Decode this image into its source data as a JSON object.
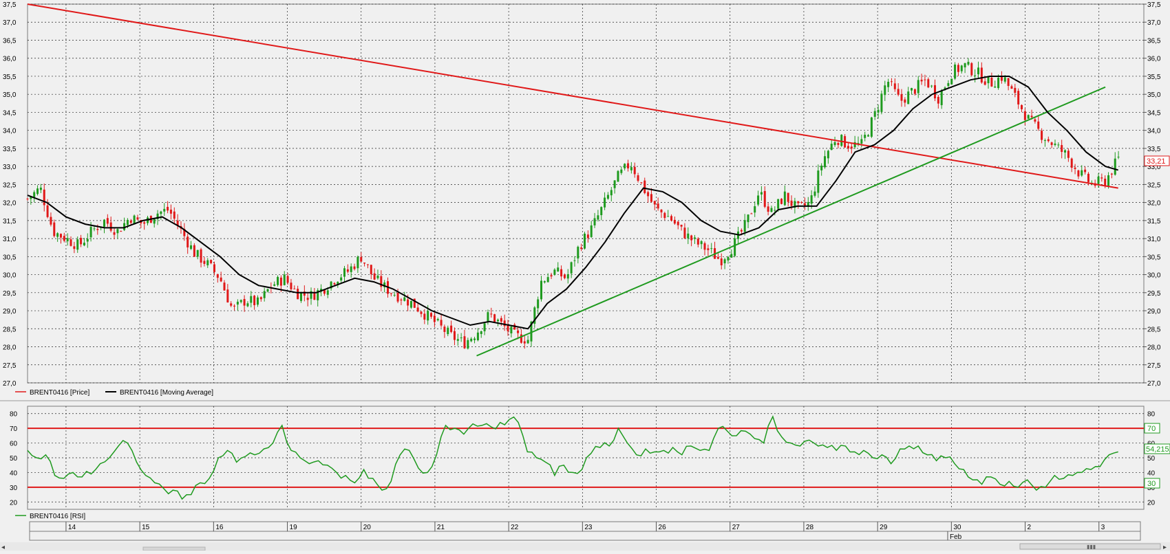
{
  "theme": {
    "background": "#f0f0f0",
    "plot_background": "#f0f0f0",
    "grid_color": "#222222",
    "price_up": "#1e9a1e",
    "price_down": "#e01818",
    "moving_average": "#000000",
    "resistance_line": "#e01818",
    "support_line": "#1f9a1f",
    "rsi_line": "#1f9a1f",
    "rsi_level_line": "#e01818",
    "last_price_tag": "#e01818",
    "rsi_tag": "#1f9a1f"
  },
  "legend": {
    "price_label": "BRENT0416 [Price]",
    "ma_label": "BRENT0416 [Moving Average]",
    "rsi_label": "BRENT0416 [RSI]"
  },
  "tags": {
    "last_price": "33,21",
    "rsi_value": "54,2152",
    "rsi_upper": "70",
    "rsi_lower": "30"
  },
  "x_axis": {
    "days": [
      "14",
      "15",
      "16",
      "19",
      "20",
      "21",
      "22",
      "23",
      "26",
      "27",
      "28",
      "29",
      "30",
      "2",
      "3"
    ],
    "month_label": "Feb"
  },
  "chart_data": [
    {
      "type": "candlestick",
      "series_name": "BRENT0416 [Price]",
      "ylim": [
        27.0,
        37.5
      ],
      "yticks": [
        "27,0",
        "27,5",
        "28,0",
        "28,5",
        "29,0",
        "29,5",
        "30,0",
        "30,5",
        "31,0",
        "31,5",
        "32,0",
        "32,5",
        "33,0",
        "33,5",
        "34,0",
        "34,5",
        "35,0",
        "35,5",
        "36,0",
        "36,5",
        "37,0",
        "37,5"
      ],
      "grid": true,
      "close_path": [
        [
          14.0,
          32.1
        ],
        [
          14.2,
          32.4
        ],
        [
          14.4,
          31.2
        ],
        [
          14.6,
          31.0
        ],
        [
          14.8,
          30.8
        ],
        [
          15.0,
          31.2
        ],
        [
          15.2,
          31.5
        ],
        [
          15.4,
          31.2
        ],
        [
          15.6,
          31.6
        ],
        [
          15.8,
          31.4
        ],
        [
          16.0,
          31.7
        ],
        [
          16.2,
          31.8
        ],
        [
          16.4,
          31.2
        ],
        [
          16.6,
          30.6
        ],
        [
          16.8,
          30.3
        ],
        [
          17.0,
          29.9
        ],
        [
          17.2,
          29.0
        ],
        [
          17.4,
          29.3
        ],
        [
          17.6,
          29.2
        ],
        [
          17.8,
          29.7
        ],
        [
          18.0,
          29.9
        ],
        [
          18.2,
          29.5
        ],
        [
          18.4,
          29.4
        ],
        [
          18.6,
          29.6
        ],
        [
          18.8,
          29.9
        ],
        [
          19.0,
          30.1
        ],
        [
          19.2,
          30.5
        ],
        [
          19.4,
          29.9
        ],
        [
          19.6,
          29.6
        ],
        [
          19.8,
          29.4
        ],
        [
          20.0,
          29.2
        ],
        [
          20.2,
          28.9
        ],
        [
          20.4,
          28.6
        ],
        [
          20.6,
          28.3
        ],
        [
          20.8,
          28.1
        ],
        [
          21.0,
          28.4
        ],
        [
          21.2,
          28.9
        ],
        [
          21.4,
          28.6
        ],
        [
          21.6,
          28.3
        ],
        [
          21.8,
          28.2
        ],
        [
          22.0,
          29.8
        ],
        [
          22.2,
          30.1
        ],
        [
          22.4,
          29.9
        ],
        [
          22.6,
          30.8
        ],
        [
          22.8,
          31.3
        ],
        [
          23.0,
          32.0
        ],
        [
          23.2,
          32.7
        ],
        [
          23.4,
          33.1
        ],
        [
          23.6,
          32.4
        ],
        [
          23.8,
          31.8
        ],
        [
          24.0,
          31.6
        ],
        [
          24.2,
          31.2
        ],
        [
          24.4,
          30.9
        ],
        [
          24.6,
          30.7
        ],
        [
          24.8,
          30.4
        ],
        [
          25.0,
          30.8
        ],
        [
          25.2,
          31.4
        ],
        [
          25.4,
          32.3
        ],
        [
          25.6,
          31.7
        ],
        [
          25.8,
          32.2
        ],
        [
          26.0,
          31.8
        ],
        [
          26.2,
          32.0
        ],
        [
          26.4,
          33.2
        ],
        [
          26.6,
          33.8
        ],
        [
          26.8,
          33.6
        ],
        [
          27.0,
          33.6
        ],
        [
          27.2,
          34.4
        ],
        [
          27.4,
          35.4
        ],
        [
          27.6,
          34.8
        ],
        [
          27.8,
          35.1
        ],
        [
          28.0,
          35.4
        ],
        [
          28.2,
          34.9
        ],
        [
          28.4,
          35.6
        ],
        [
          28.6,
          35.8
        ],
        [
          28.8,
          35.6
        ],
        [
          29.0,
          35.3
        ],
        [
          29.2,
          35.5
        ],
        [
          29.4,
          34.9
        ],
        [
          29.6,
          34.3
        ],
        [
          29.8,
          33.9
        ],
        [
          30.0,
          33.6
        ],
        [
          30.2,
          33.3
        ],
        [
          30.4,
          32.8
        ],
        [
          30.6,
          32.5
        ],
        [
          30.8,
          32.6
        ],
        [
          31.0,
          33.2
        ]
      ],
      "moving_average": [
        [
          14.0,
          32.2
        ],
        [
          14.3,
          32.0
        ],
        [
          14.6,
          31.6
        ],
        [
          14.9,
          31.4
        ],
        [
          15.2,
          31.3
        ],
        [
          15.5,
          31.3
        ],
        [
          15.8,
          31.5
        ],
        [
          16.1,
          31.6
        ],
        [
          16.4,
          31.3
        ],
        [
          16.7,
          30.9
        ],
        [
          17.0,
          30.5
        ],
        [
          17.3,
          30.0
        ],
        [
          17.6,
          29.7
        ],
        [
          17.9,
          29.6
        ],
        [
          18.2,
          29.5
        ],
        [
          18.5,
          29.5
        ],
        [
          18.8,
          29.7
        ],
        [
          19.1,
          29.9
        ],
        [
          19.4,
          29.8
        ],
        [
          19.7,
          29.6
        ],
        [
          20.0,
          29.3
        ],
        [
          20.3,
          29.0
        ],
        [
          20.6,
          28.8
        ],
        [
          20.9,
          28.6
        ],
        [
          21.2,
          28.7
        ],
        [
          21.5,
          28.6
        ],
        [
          21.8,
          28.5
        ],
        [
          22.1,
          29.2
        ],
        [
          22.4,
          29.6
        ],
        [
          22.7,
          30.2
        ],
        [
          23.0,
          30.9
        ],
        [
          23.3,
          31.7
        ],
        [
          23.6,
          32.4
        ],
        [
          23.9,
          32.3
        ],
        [
          24.2,
          32.0
        ],
        [
          24.5,
          31.5
        ],
        [
          24.8,
          31.2
        ],
        [
          25.1,
          31.1
        ],
        [
          25.4,
          31.3
        ],
        [
          25.7,
          31.8
        ],
        [
          26.0,
          31.9
        ],
        [
          26.3,
          31.9
        ],
        [
          26.6,
          32.6
        ],
        [
          26.9,
          33.4
        ],
        [
          27.2,
          33.6
        ],
        [
          27.5,
          34.0
        ],
        [
          27.8,
          34.6
        ],
        [
          28.1,
          35.0
        ],
        [
          28.4,
          35.2
        ],
        [
          28.7,
          35.4
        ],
        [
          29.0,
          35.5
        ],
        [
          29.3,
          35.5
        ],
        [
          29.6,
          35.2
        ],
        [
          29.9,
          34.5
        ],
        [
          30.2,
          34.0
        ],
        [
          30.5,
          33.4
        ],
        [
          30.8,
          33.0
        ],
        [
          31.0,
          32.9
        ]
      ],
      "resistance_trendline": [
        [
          14.0,
          37.5
        ],
        [
          31.0,
          32.4
        ]
      ],
      "support_trendline": [
        [
          21.0,
          27.75
        ],
        [
          30.8,
          35.2
        ]
      ]
    },
    {
      "type": "line",
      "series_name": "BRENT0416 [RSI]",
      "ylim": [
        15,
        85
      ],
      "yticks": [
        "20",
        "30",
        "40",
        "50",
        "60",
        "70",
        "80"
      ],
      "levels": [
        30,
        70
      ],
      "values": [
        55,
        50,
        52,
        38,
        36,
        40,
        37,
        39,
        46,
        50,
        58,
        60,
        47,
        38,
        33,
        29,
        28,
        22,
        25,
        33,
        36,
        50,
        55,
        47,
        51,
        52,
        56,
        60,
        72,
        55,
        50,
        46,
        48,
        45,
        40,
        38,
        33,
        42,
        36,
        28,
        34,
        52,
        55,
        43,
        40,
        52,
        72,
        70,
        66,
        73,
        72,
        71,
        74,
        76,
        74,
        54,
        50,
        47,
        38,
        45,
        40,
        42,
        53,
        57,
        58,
        70,
        60,
        52,
        56,
        54,
        55,
        57,
        52,
        58,
        55,
        55,
        70,
        68,
        65,
        68,
        63,
        60,
        78,
        64,
        60,
        58,
        62,
        58,
        57,
        55,
        58,
        54,
        55,
        50,
        52,
        46,
        56,
        58,
        58,
        52,
        48,
        50,
        46,
        42,
        35,
        32,
        37,
        32,
        34,
        30,
        35,
        28,
        30,
        38,
        36,
        38,
        40,
        42,
        44,
        52,
        54
      ]
    }
  ]
}
